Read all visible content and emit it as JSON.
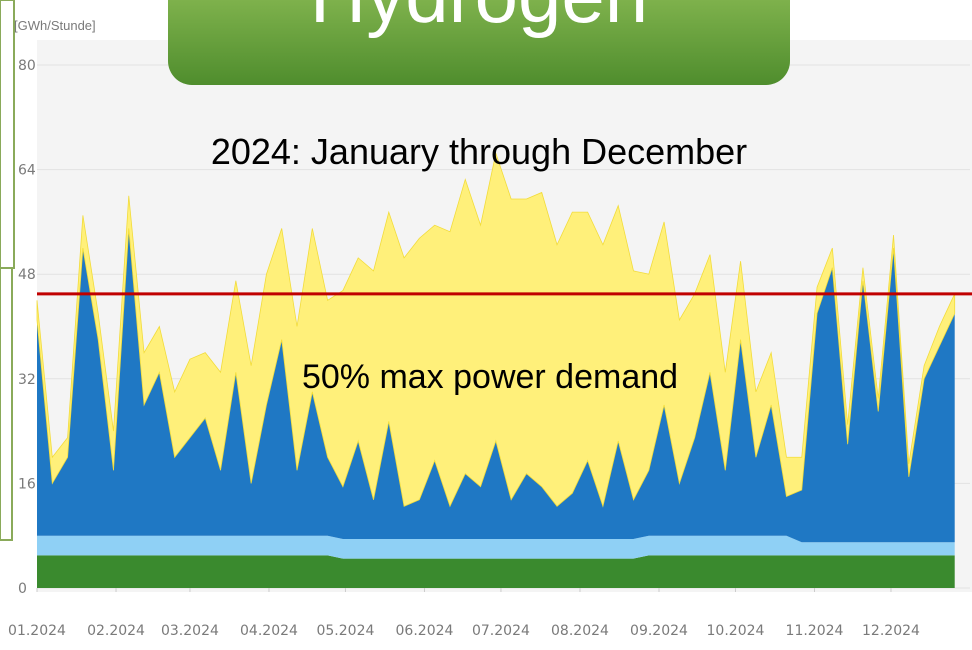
{
  "chart_data": {
    "type": "stacked_area",
    "title": "Hydrogen",
    "subtitle": "2024: January through December",
    "y_label": "[GWh/Stunde]",
    "reference_line": {
      "value": 45,
      "label": "50% max power demand",
      "color": "#c00000"
    },
    "xlim": [
      0,
      366
    ],
    "xticks": [
      {
        "value": 0,
        "label": "01.2024"
      },
      {
        "value": 31,
        "label": "02.2024"
      },
      {
        "value": 60,
        "label": "03.2024"
      },
      {
        "value": 91,
        "label": "04.2024"
      },
      {
        "value": 121,
        "label": "05.2024"
      },
      {
        "value": 152,
        "label": "06.2024"
      },
      {
        "value": 182,
        "label": "07.2024"
      },
      {
        "value": 213,
        "label": "08.2024"
      },
      {
        "value": 244,
        "label": "09.2024"
      },
      {
        "value": 274,
        "label": "10.2024"
      },
      {
        "value": 305,
        "label": "11.2024"
      },
      {
        "value": 335,
        "label": "12.2024"
      }
    ],
    "ylim": [
      0,
      80
    ],
    "yticks": [
      0,
      16,
      32,
      48,
      64,
      80
    ],
    "grid": true,
    "x": [
      0,
      6,
      12,
      18,
      24,
      30,
      36,
      42,
      48,
      54,
      60,
      66,
      72,
      78,
      84,
      90,
      96,
      102,
      108,
      114,
      120,
      126,
      132,
      138,
      144,
      150,
      156,
      162,
      168,
      174,
      180,
      186,
      192,
      198,
      204,
      210,
      216,
      222,
      228,
      234,
      240,
      246,
      252,
      258,
      264,
      270,
      276,
      282,
      288,
      294,
      300,
      306,
      312,
      318,
      324,
      330,
      336,
      342,
      348,
      354,
      360
    ],
    "series": [
      {
        "color": "#3a8a2e",
        "values": [
          5,
          5,
          5,
          5,
          5,
          5,
          5,
          5,
          5,
          5,
          5,
          5,
          5,
          5,
          5,
          5,
          5,
          5,
          5,
          5,
          4.5,
          4.5,
          4.5,
          4.5,
          4.5,
          4.5,
          4.5,
          4.5,
          4.5,
          4.5,
          4.5,
          4.5,
          4.5,
          4.5,
          4.5,
          4.5,
          4.5,
          4.5,
          4.5,
          4.5,
          5,
          5,
          5,
          5,
          5,
          5,
          5,
          5,
          5,
          5,
          5,
          5,
          5,
          5,
          5,
          5,
          5,
          5,
          5,
          5,
          5
        ]
      },
      {
        "color": "#8fd0f5",
        "values": [
          3,
          3,
          3,
          3,
          3,
          3,
          3,
          3,
          3,
          3,
          3,
          3,
          3,
          3,
          3,
          3,
          3,
          3,
          3,
          3,
          3,
          3,
          3,
          3,
          3,
          3,
          3,
          3,
          3,
          3,
          3,
          3,
          3,
          3,
          3,
          3,
          3,
          3,
          3,
          3,
          3,
          3,
          3,
          3,
          3,
          3,
          3,
          3,
          3,
          3,
          2,
          2,
          2,
          2,
          2,
          2,
          2,
          2,
          2,
          2,
          2
        ]
      },
      {
        "color": "#1f78c4",
        "values": [
          33,
          8,
          12,
          44,
          30,
          10,
          47,
          20,
          25,
          12,
          15,
          18,
          10,
          25,
          8,
          20,
          30,
          10,
          22,
          12,
          8,
          15,
          6,
          18,
          5,
          6,
          12,
          5,
          10,
          8,
          15,
          6,
          10,
          8,
          5,
          7,
          12,
          5,
          15,
          6,
          10,
          20,
          8,
          15,
          25,
          10,
          30,
          12,
          20,
          6,
          8,
          35,
          42,
          15,
          40,
          20,
          45,
          10,
          25,
          30,
          35
        ]
      },
      {
        "color": "#fff07a",
        "values": [
          3,
          4,
          3,
          5,
          4,
          6,
          5,
          8,
          7,
          10,
          12,
          10,
          15,
          14,
          18,
          20,
          17,
          22,
          25,
          24,
          30,
          28,
          35,
          32,
          38,
          40,
          36,
          42,
          45,
          40,
          44,
          46,
          42,
          45,
          40,
          43,
          38,
          40,
          36,
          35,
          30,
          28,
          25,
          22,
          18,
          15,
          12,
          10,
          8,
          6,
          5,
          4,
          3,
          3,
          2,
          2,
          2,
          2,
          2,
          3,
          3
        ]
      }
    ]
  }
}
